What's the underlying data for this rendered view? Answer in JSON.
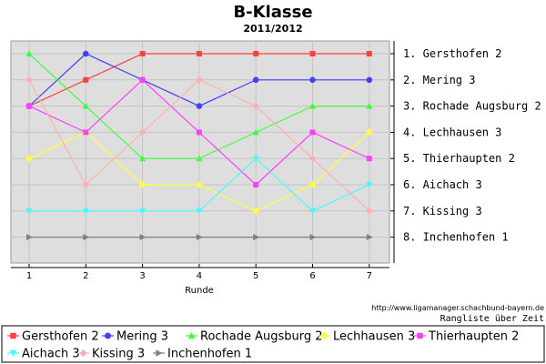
{
  "chart_data": {
    "type": "line",
    "title": "B-Klasse",
    "subtitle": "2011/2012",
    "xlabel": "Runde",
    "ylabel": "",
    "x": [
      1,
      2,
      3,
      4,
      5,
      6,
      7
    ],
    "x_ticks": [
      "1",
      "2",
      "3",
      "4",
      "5",
      "6",
      "7"
    ],
    "ylim": [
      1,
      8
    ],
    "y_inverted": true,
    "grid": true,
    "legend_position": "bottom",
    "rank_labels": [
      "1. Gersthofen 2",
      "2. Mering 3",
      "3. Rochade Augsburg 2",
      "4. Lechhausen 3",
      "5. Thierhaupten 2",
      "6. Aichach 3",
      "7. Kissing 3",
      "8. Inchenhofen 1"
    ],
    "series": [
      {
        "name": "Gersthofen 2",
        "color": "#ff4040",
        "marker": "square",
        "values": [
          3,
          2,
          1,
          1,
          1,
          1,
          1
        ]
      },
      {
        "name": "Mering 3",
        "color": "#4040ff",
        "marker": "circle",
        "values": [
          3,
          1,
          2,
          3,
          2,
          2,
          2
        ]
      },
      {
        "name": "Rochade Augsburg 2",
        "color": "#40ff40",
        "marker": "triangle-up",
        "values": [
          1,
          3,
          5,
          5,
          4,
          3,
          3
        ]
      },
      {
        "name": "Lechhausen 3",
        "color": "#ffff40",
        "marker": "diamond",
        "values": [
          5,
          4,
          6,
          6,
          7,
          6,
          4
        ]
      },
      {
        "name": "Thierhaupten 2",
        "color": "#ff40ff",
        "marker": "square",
        "values": [
          3,
          4,
          2,
          4,
          6,
          4,
          5
        ]
      },
      {
        "name": "Aichach 3",
        "color": "#40ffff",
        "marker": "triangle-down",
        "values": [
          7,
          7,
          7,
          7,
          5,
          7,
          6
        ]
      },
      {
        "name": "Kissing 3",
        "color": "#ffb0b0",
        "marker": "diamond",
        "values": [
          2,
          6,
          4,
          2,
          3,
          5,
          7
        ]
      },
      {
        "name": "Inchenhofen 1",
        "color": "#808080",
        "marker": "triangle-right",
        "values": [
          8,
          8,
          8,
          8,
          8,
          8,
          8
        ]
      }
    ]
  },
  "footer": {
    "url": "http://www.ligamanager.schachbund-bayern.de",
    "caption": "Rangliste über Zeit"
  }
}
